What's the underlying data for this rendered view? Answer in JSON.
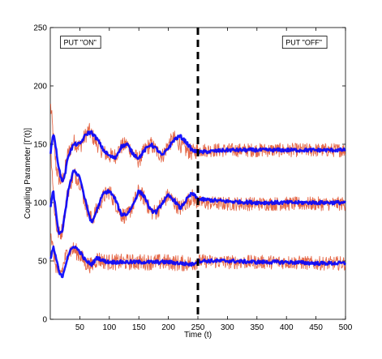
{
  "chart_data": {
    "type": "line",
    "title": "",
    "xlabel": "Time (t)",
    "ylabel": "Coupling Parameter [Γ(t)]",
    "xlim": [
      0,
      500
    ],
    "ylim": [
      0,
      250
    ],
    "xticks": [
      50,
      100,
      150,
      200,
      250,
      300,
      350,
      400,
      450,
      500
    ],
    "yticks": [
      0,
      50,
      100,
      150,
      200,
      250
    ],
    "grid": false,
    "legend": "none",
    "vline": {
      "x": 250,
      "style": "dashed",
      "color": "#000000"
    },
    "annotations": [
      {
        "text": "PUT \"ON\"",
        "x": 20,
        "y": 235
      },
      {
        "text": "PUT \"OFF\"",
        "x": 396,
        "y": 235
      }
    ],
    "series": [
      {
        "color": "#0000ff",
        "style": "thick",
        "x": [
          0,
          5,
          10,
          15,
          20,
          25,
          30,
          40,
          50,
          60,
          65,
          70,
          80,
          90,
          100,
          110,
          120,
          130,
          140,
          150,
          160,
          170,
          180,
          190,
          200,
          210,
          220,
          230,
          240,
          250,
          300,
          350,
          400,
          450,
          500
        ],
        "y": [
          140,
          160,
          145,
          128,
          118,
          124,
          140,
          150,
          150,
          158,
          160,
          160,
          154,
          145,
          140,
          138,
          148,
          150,
          142,
          138,
          145,
          150,
          146,
          140,
          147,
          154,
          157,
          152,
          145,
          143,
          145,
          145,
          145,
          145,
          145
        ]
      },
      {
        "color": "#0000ff",
        "style": "thick",
        "x": [
          0,
          5,
          10,
          15,
          20,
          25,
          30,
          40,
          50,
          60,
          70,
          80,
          90,
          100,
          110,
          120,
          130,
          140,
          150,
          160,
          170,
          180,
          190,
          200,
          210,
          220,
          230,
          240,
          250,
          300,
          350,
          400,
          450,
          500
        ],
        "y": [
          95,
          110,
          90,
          72,
          75,
          90,
          110,
          128,
          122,
          100,
          82,
          95,
          108,
          110,
          103,
          90,
          90,
          98,
          110,
          105,
          93,
          92,
          100,
          106,
          102,
          95,
          102,
          108,
          103,
          101,
          100,
          100,
          100,
          100
        ]
      },
      {
        "color": "#0000ff",
        "style": "thick",
        "x": [
          0,
          5,
          10,
          15,
          20,
          25,
          30,
          40,
          50,
          60,
          70,
          80,
          90,
          100,
          120,
          140,
          160,
          180,
          200,
          220,
          240,
          250,
          300,
          350,
          400,
          450,
          500
        ],
        "y": [
          50,
          62,
          52,
          40,
          36,
          45,
          55,
          63,
          58,
          50,
          47,
          53,
          50,
          49,
          49,
          49,
          49,
          49,
          49,
          48,
          47,
          50,
          50,
          49,
          49,
          48,
          48
        ]
      },
      {
        "color": "#e0502a",
        "style": "noisy",
        "x": [
          0,
          3,
          6,
          10,
          15,
          20,
          25,
          30,
          40,
          50,
          60,
          65,
          70,
          80,
          90,
          100,
          110,
          120,
          130,
          140,
          150,
          160,
          170,
          180,
          190,
          200,
          210,
          220,
          230,
          240,
          250,
          300,
          350,
          400,
          450,
          500
        ],
        "y": [
          185,
          170,
          150,
          130,
          120,
          118,
          128,
          142,
          152,
          148,
          158,
          162,
          158,
          150,
          143,
          140,
          140,
          148,
          150,
          142,
          136,
          145,
          150,
          144,
          140,
          150,
          155,
          150,
          145,
          143,
          145,
          145,
          145,
          145,
          145,
          145
        ]
      },
      {
        "color": "#e0502a",
        "style": "noisy",
        "x": [
          0,
          3,
          6,
          10,
          15,
          20,
          25,
          30,
          40,
          50,
          60,
          70,
          80,
          90,
          100,
          110,
          120,
          130,
          140,
          150,
          160,
          170,
          180,
          190,
          200,
          210,
          220,
          230,
          240,
          250,
          300,
          350,
          400,
          450,
          500
        ],
        "y": [
          150,
          130,
          100,
          80,
          73,
          76,
          93,
          110,
          125,
          118,
          98,
          85,
          95,
          105,
          110,
          100,
          90,
          88,
          98,
          110,
          103,
          92,
          92,
          100,
          106,
          100,
          95,
          100,
          105,
          100,
          99,
          99,
          99,
          99,
          99
        ]
      },
      {
        "color": "#e0502a",
        "style": "noisy",
        "x": [
          0,
          3,
          6,
          10,
          15,
          20,
          25,
          30,
          40,
          50,
          60,
          70,
          80,
          90,
          100,
          120,
          140,
          160,
          180,
          200,
          220,
          240,
          250,
          300,
          350,
          400,
          450,
          500
        ],
        "y": [
          80,
          65,
          55,
          45,
          38,
          42,
          52,
          58,
          60,
          55,
          48,
          46,
          52,
          50,
          49,
          49,
          49,
          49,
          49,
          49,
          48,
          48,
          50,
          49,
          49,
          49,
          48,
          48
        ]
      }
    ]
  }
}
